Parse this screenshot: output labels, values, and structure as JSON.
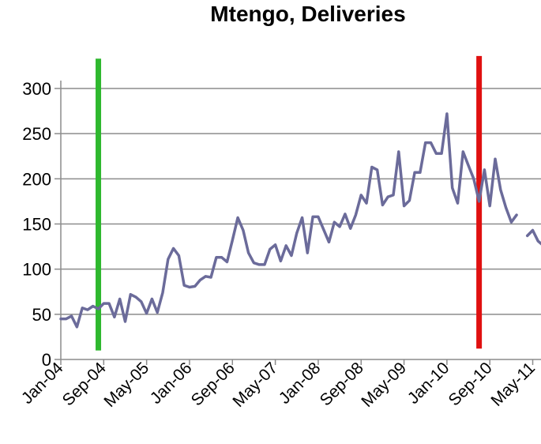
{
  "chart_data": {
    "type": "line",
    "title": "Mtengo, Deliveries",
    "xlabel": "",
    "ylabel": "",
    "ylim": [
      0,
      300
    ],
    "yticks": [
      0,
      50,
      100,
      150,
      200,
      250,
      300
    ],
    "x_tick_labels": [
      "Jan-04",
      "Sep-04",
      "May-05",
      "Jan-06",
      "Sep-06",
      "May-07",
      "Jan-08",
      "Sep-08",
      "May-09",
      "Jan-10",
      "Sep-10",
      "May-11"
    ],
    "grid": true,
    "series": [
      {
        "name": "Deliveries",
        "color": "#6b6b9a",
        "segments": [
          [
            [
              0,
              45
            ],
            [
              1,
              45
            ],
            [
              2,
              48
            ],
            [
              3,
              36
            ],
            [
              4,
              57
            ],
            [
              5,
              55
            ],
            [
              6,
              59
            ],
            [
              7,
              56
            ],
            [
              8,
              62
            ],
            [
              9,
              62
            ],
            [
              10,
              47
            ],
            [
              11,
              67
            ],
            [
              12,
              42
            ],
            [
              13,
              72
            ],
            [
              14,
              69
            ],
            [
              15,
              64
            ],
            [
              16,
              51
            ],
            [
              17,
              67
            ],
            [
              18,
              52
            ],
            [
              19,
              74
            ],
            [
              20,
              111
            ],
            [
              21,
              123
            ],
            [
              22,
              115
            ],
            [
              23,
              82
            ],
            [
              24,
              80
            ],
            [
              25,
              81
            ],
            [
              26,
              88
            ],
            [
              27,
              92
            ],
            [
              28,
              91
            ],
            [
              29,
              113
            ],
            [
              30,
              113
            ],
            [
              31,
              108
            ],
            [
              32,
              132
            ],
            [
              33,
              157
            ],
            [
              34,
              143
            ],
            [
              35,
              118
            ],
            [
              36,
              107
            ],
            [
              37,
              105
            ],
            [
              38,
              105
            ],
            [
              39,
              122
            ],
            [
              40,
              127
            ],
            [
              41,
              109
            ],
            [
              42,
              126
            ],
            [
              43,
              115
            ],
            [
              44,
              140
            ],
            [
              45,
              157
            ],
            [
              46,
              118
            ],
            [
              47,
              158
            ],
            [
              48,
              158
            ],
            [
              49,
              144
            ],
            [
              50,
              130
            ],
            [
              51,
              152
            ],
            [
              52,
              147
            ],
            [
              53,
              161
            ],
            [
              54,
              145
            ],
            [
              55,
              160
            ],
            [
              56,
              182
            ],
            [
              57,
              173
            ],
            [
              58,
              213
            ],
            [
              59,
              210
            ],
            [
              60,
              171
            ],
            [
              61,
              180
            ],
            [
              62,
              182
            ],
            [
              63,
              230
            ],
            [
              64,
              170
            ],
            [
              65,
              176
            ],
            [
              66,
              207
            ],
            [
              67,
              207
            ],
            [
              68,
              240
            ],
            [
              69,
              240
            ],
            [
              70,
              228
            ],
            [
              71,
              228
            ],
            [
              72,
              272
            ],
            [
              73,
              190
            ],
            [
              74,
              173
            ],
            [
              75,
              230
            ],
            [
              76,
              215
            ],
            [
              77,
              200
            ],
            [
              78,
              175
            ],
            [
              79,
              210
            ],
            [
              80,
              170
            ],
            [
              81,
              222
            ],
            [
              82,
              188
            ],
            [
              83,
              168
            ],
            [
              84,
              152
            ],
            [
              85,
              160
            ]
          ],
          [
            [
              87,
              137
            ],
            [
              88,
              143
            ],
            [
              89,
              131
            ],
            [
              90,
              126
            ]
          ]
        ]
      }
    ],
    "markers": [
      {
        "name": "green-marker",
        "x": 7,
        "y_top": 333,
        "y_bottom": 10,
        "color": "#2eb82e"
      },
      {
        "name": "red-marker",
        "x": 78,
        "y_top": 336,
        "y_bottom": 12,
        "color": "#e01010"
      }
    ]
  }
}
